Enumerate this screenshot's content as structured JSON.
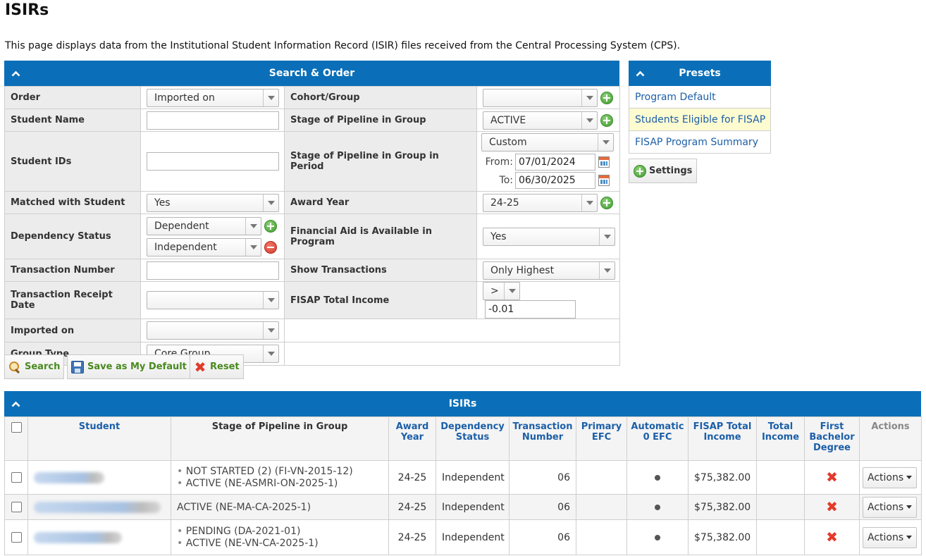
{
  "page": {
    "title": "ISIRs",
    "intro": "This page displays data from the Institutional Student Information Record (ISIR) files received from the Central Processing System (CPS)."
  },
  "search_panel": {
    "title": "Search & Order",
    "order": {
      "label": "Order",
      "value": "Imported on"
    },
    "student_name": {
      "label": "Student Name",
      "value": ""
    },
    "student_ids": {
      "label": "Student IDs",
      "value": ""
    },
    "matched_with_student": {
      "label": "Matched with Student",
      "value": "Yes"
    },
    "dependency_status": {
      "label": "Dependency Status",
      "values": [
        "Dependent",
        "Independent"
      ]
    },
    "transaction_number": {
      "label": "Transaction Number",
      "value": ""
    },
    "transaction_receipt_date": {
      "label": "Transaction Receipt Date",
      "value": ""
    },
    "imported_on": {
      "label": "Imported on",
      "value": ""
    },
    "group_type": {
      "label": "Group Type",
      "value": "Core Group"
    },
    "cohort_group": {
      "label": "Cohort/Group",
      "value": ""
    },
    "stage_pipeline_group": {
      "label": "Stage of Pipeline in Group",
      "value": "ACTIVE"
    },
    "stage_pipeline_period": {
      "label": "Stage of Pipeline in Group in Period",
      "value": "Custom",
      "from_label": "From:",
      "from": "07/01/2024",
      "to_label": "To:",
      "to": "06/30/2025"
    },
    "award_year": {
      "label": "Award Year",
      "value": "24-25"
    },
    "financial_aid_available": {
      "label": "Financial Aid is Available in Program",
      "value": "Yes"
    },
    "show_transactions": {
      "label": "Show Transactions",
      "value": "Only Highest"
    },
    "fisap_total_income": {
      "label": "FISAP Total Income",
      "operator": ">",
      "value": "-0.01"
    }
  },
  "buttons": {
    "search": "Search",
    "save_default": "Save as My Default",
    "reset": "Reset"
  },
  "presets": {
    "title": "Presets",
    "items": [
      "Program Default",
      "Students Eligible for FISAP",
      "FISAP Program Summary"
    ],
    "settings_label": "Settings"
  },
  "isirs": {
    "title": "ISIRs",
    "columns": {
      "student": "Student",
      "stage": "Stage of Pipeline in Group",
      "award_year": "Award Year",
      "dependency_status": "Dependency Status",
      "transaction_number": "Transaction Number",
      "primary_efc": "Primary EFC",
      "automatic_0_efc": "Automatic 0 EFC",
      "fisap_total_income": "FISAP Total Income",
      "total_income": "Total Income",
      "first_bachelor_degree": "First Bachelor Degree",
      "actions": "Actions"
    },
    "rows": [
      {
        "stage": [
          "NOT STARTED (2) (FI-VN-2015-12)",
          "ACTIVE (NE-ASMRI-ON-2025-1)"
        ],
        "award_year": "24-25",
        "dependency_status": "Independent",
        "transaction_number": "06",
        "primary_efc": "",
        "fisap_total_income": "$75,382.00",
        "total_income": "",
        "actions": "Actions"
      },
      {
        "stage": [
          "ACTIVE (NE-MA-CA-2025-1)"
        ],
        "award_year": "24-25",
        "dependency_status": "Independent",
        "transaction_number": "06",
        "primary_efc": "",
        "fisap_total_income": "$75,382.00",
        "total_income": "",
        "actions": "Actions"
      },
      {
        "stage": [
          "PENDING (DA-2021-01)",
          "ACTIVE (NE-VN-CA-2025-1)"
        ],
        "award_year": "24-25",
        "dependency_status": "Independent",
        "transaction_number": "06",
        "primary_efc": "",
        "fisap_total_income": "$75,382.00",
        "total_income": "",
        "actions": "Actions"
      }
    ]
  },
  "icons": {
    "collapse": "chevron-up-icon",
    "add": "plus-circle-icon",
    "remove": "minus-circle-icon",
    "calendar": "calendar-icon",
    "search": "search-icon",
    "save": "save-icon",
    "reset": "reset-icon",
    "automatic_efc": "dot-icon",
    "first_bachelor": "x-icon"
  },
  "colors": {
    "accent": "#0a6fb8",
    "link": "#1c5fa8",
    "button_text": "#4a8a1f",
    "highlight": "#fdfbd0",
    "danger": "#e33a2a"
  }
}
